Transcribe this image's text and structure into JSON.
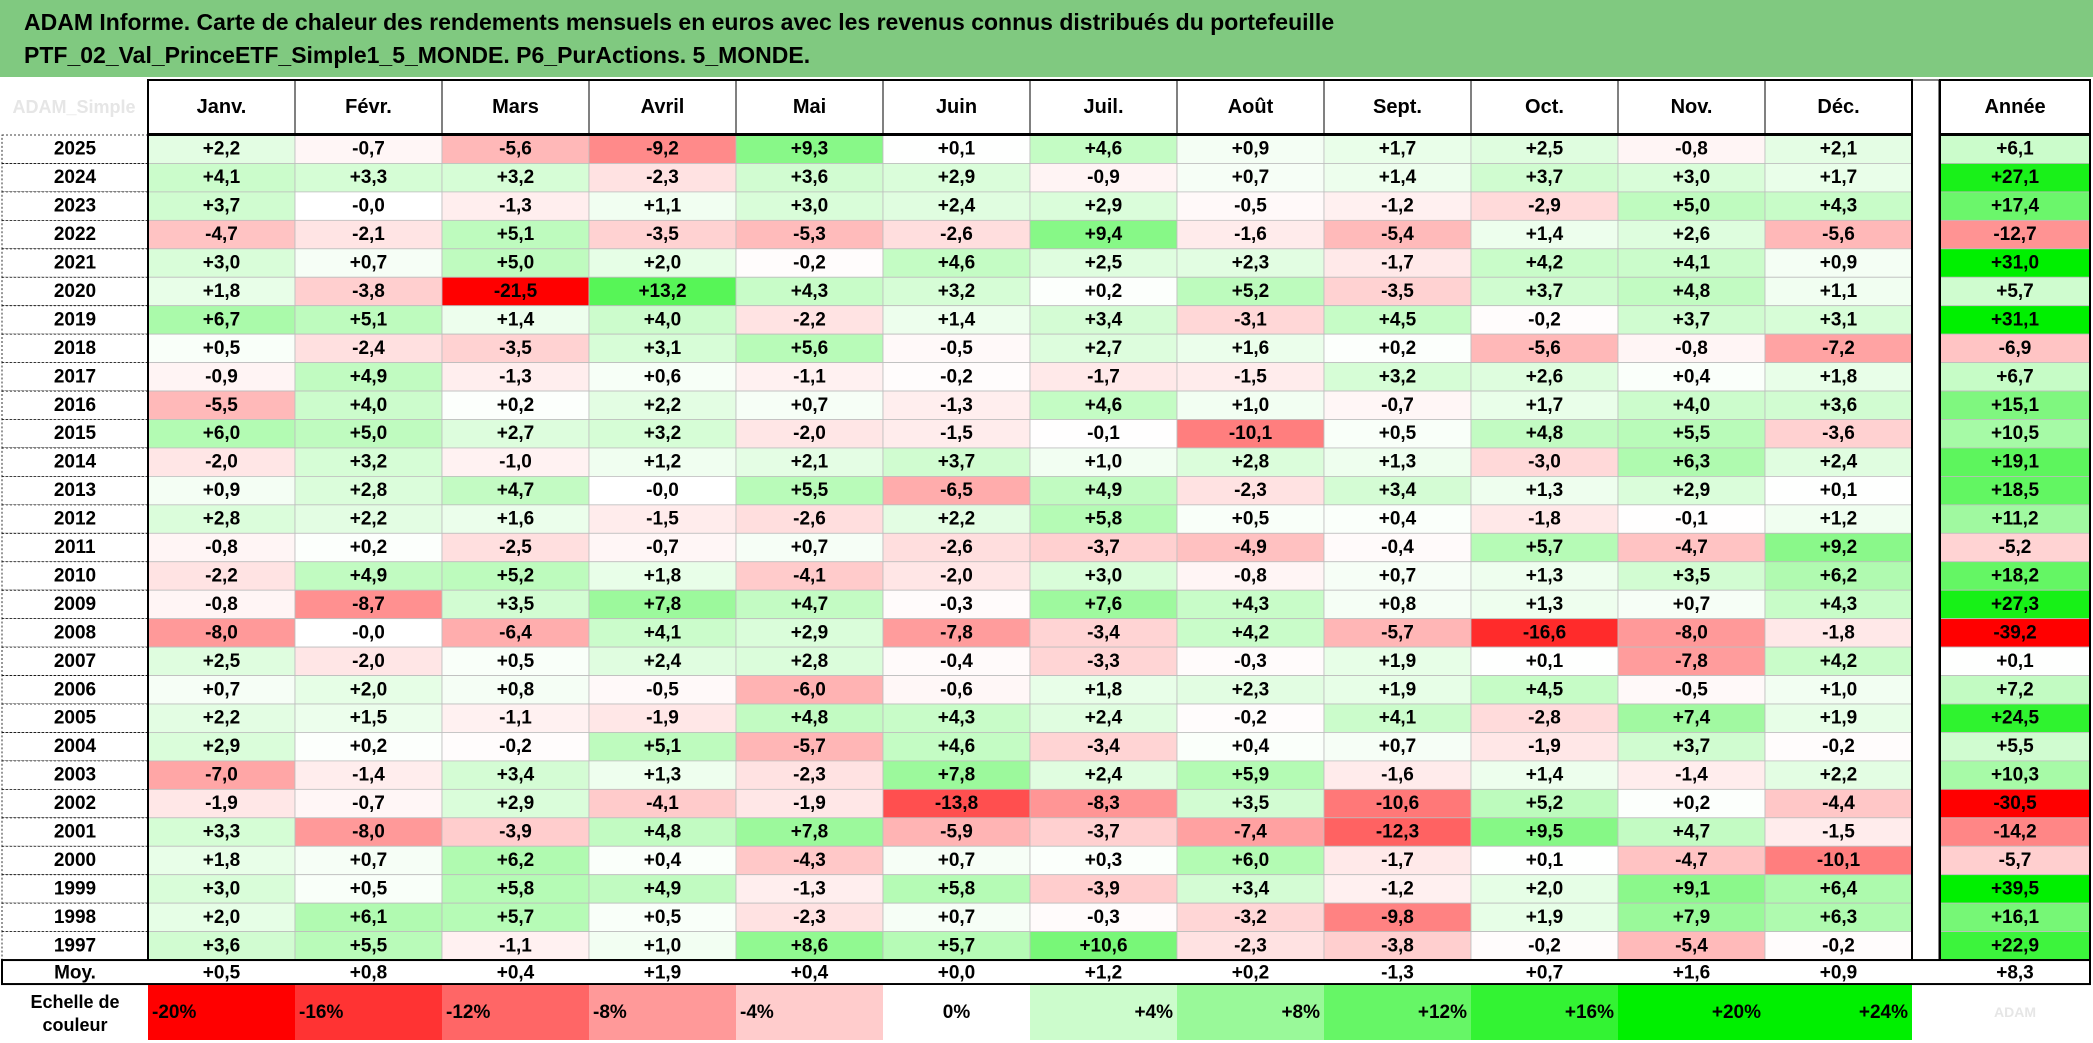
{
  "header": {
    "title_line1": "ADAM Informe. Carte de chaleur des rendements mensuels en euros avec les revenus connus distribués du portefeuille",
    "title_line2": "PTF_02_Val_PrinceETF_Simple1_5_MONDE. P6_PurActions. 5_MONDE."
  },
  "corner_label": "ADAM_Simple",
  "colors": {
    "header_bg": "#80c980",
    "neg_max": "#ff0000",
    "pos_max": "#00e000",
    "neutral": "#ffffff"
  },
  "chart_data": {
    "type": "heatmap",
    "months": [
      "Janv.",
      "Févr.",
      "Mars",
      "Avril",
      "Mai",
      "Juin",
      "Juil.",
      "Août",
      "Sept.",
      "Oct.",
      "Nov.",
      "Déc."
    ],
    "annual_label": "Année",
    "rows": [
      {
        "year": "2025",
        "values": [
          "+2,2",
          "-0,7",
          "-5,6",
          "-9,2",
          "+9,3",
          "+0,1",
          "+4,6",
          "+0,9",
          "+1,7",
          "+2,5",
          "-0,8",
          "+2,1"
        ],
        "annual": "+6,1"
      },
      {
        "year": "2024",
        "values": [
          "+4,1",
          "+3,3",
          "+3,2",
          "-2,3",
          "+3,6",
          "+2,9",
          "-0,9",
          "+0,7",
          "+1,4",
          "+3,7",
          "+3,0",
          "+1,7"
        ],
        "annual": "+27,1"
      },
      {
        "year": "2023",
        "values": [
          "+3,7",
          "-0,0",
          "-1,3",
          "+1,1",
          "+3,0",
          "+2,4",
          "+2,9",
          "-0,5",
          "-1,2",
          "-2,9",
          "+5,0",
          "+4,3"
        ],
        "annual": "+17,4"
      },
      {
        "year": "2022",
        "values": [
          "-4,7",
          "-2,1",
          "+5,1",
          "-3,5",
          "-5,3",
          "-2,6",
          "+9,4",
          "-1,6",
          "-5,4",
          "+1,4",
          "+2,6",
          "-5,6"
        ],
        "annual": "-12,7"
      },
      {
        "year": "2021",
        "values": [
          "+3,0",
          "+0,7",
          "+5,0",
          "+2,0",
          "-0,2",
          "+4,6",
          "+2,5",
          "+2,3",
          "-1,7",
          "+4,2",
          "+4,1",
          "+0,9"
        ],
        "annual": "+31,0"
      },
      {
        "year": "2020",
        "values": [
          "+1,8",
          "-3,8",
          "-21,5",
          "+13,2",
          "+4,3",
          "+3,2",
          "+0,2",
          "+5,2",
          "-3,5",
          "+3,7",
          "+4,8",
          "+1,1"
        ],
        "annual": "+5,7"
      },
      {
        "year": "2019",
        "values": [
          "+6,7",
          "+5,1",
          "+1,4",
          "+4,0",
          "-2,2",
          "+1,4",
          "+3,4",
          "-3,1",
          "+4,5",
          "-0,2",
          "+3,7",
          "+3,1"
        ],
        "annual": "+31,1"
      },
      {
        "year": "2018",
        "values": [
          "+0,5",
          "-2,4",
          "-3,5",
          "+3,1",
          "+5,6",
          "-0,5",
          "+2,7",
          "+1,6",
          "+0,2",
          "-5,6",
          "-0,8",
          "-7,2"
        ],
        "annual": "-6,9"
      },
      {
        "year": "2017",
        "values": [
          "-0,9",
          "+4,9",
          "-1,3",
          "+0,6",
          "-1,1",
          "-0,2",
          "-1,7",
          "-1,5",
          "+3,2",
          "+2,6",
          "+0,4",
          "+1,8"
        ],
        "annual": "+6,7"
      },
      {
        "year": "2016",
        "values": [
          "-5,5",
          "+4,0",
          "+0,2",
          "+2,2",
          "+0,7",
          "-1,3",
          "+4,6",
          "+1,0",
          "-0,7",
          "+1,7",
          "+4,0",
          "+3,6"
        ],
        "annual": "+15,1"
      },
      {
        "year": "2015",
        "values": [
          "+6,0",
          "+5,0",
          "+2,7",
          "+3,2",
          "-2,0",
          "-1,5",
          "-0,1",
          "-10,1",
          "+0,5",
          "+4,8",
          "+5,5",
          "-3,6"
        ],
        "annual": "+10,5"
      },
      {
        "year": "2014",
        "values": [
          "-2,0",
          "+3,2",
          "-1,0",
          "+1,2",
          "+2,1",
          "+3,7",
          "+1,0",
          "+2,8",
          "+1,3",
          "-3,0",
          "+6,3",
          "+2,4"
        ],
        "annual": "+19,1"
      },
      {
        "year": "2013",
        "values": [
          "+0,9",
          "+2,8",
          "+4,7",
          "-0,0",
          "+5,5",
          "-6,5",
          "+4,9",
          "-2,3",
          "+3,4",
          "+1,3",
          "+2,9",
          "+0,1"
        ],
        "annual": "+18,5"
      },
      {
        "year": "2012",
        "values": [
          "+2,8",
          "+2,2",
          "+1,6",
          "-1,5",
          "-2,6",
          "+2,2",
          "+5,8",
          "+0,5",
          "+0,4",
          "-1,8",
          "-0,1",
          "+1,2"
        ],
        "annual": "+11,2"
      },
      {
        "year": "2011",
        "values": [
          "-0,8",
          "+0,2",
          "-2,5",
          "-0,7",
          "+0,7",
          "-2,6",
          "-3,7",
          "-4,9",
          "-0,4",
          "+5,7",
          "-4,7",
          "+9,2"
        ],
        "annual": "-5,2"
      },
      {
        "year": "2010",
        "values": [
          "-2,2",
          "+4,9",
          "+5,2",
          "+1,8",
          "-4,1",
          "-2,0",
          "+3,0",
          "-0,8",
          "+0,7",
          "+1,3",
          "+3,5",
          "+6,2"
        ],
        "annual": "+18,2"
      },
      {
        "year": "2009",
        "values": [
          "-0,8",
          "-8,7",
          "+3,5",
          "+7,8",
          "+4,7",
          "-0,3",
          "+7,6",
          "+4,3",
          "+0,8",
          "+1,3",
          "+0,7",
          "+4,3"
        ],
        "annual": "+27,3"
      },
      {
        "year": "2008",
        "values": [
          "-8,0",
          "-0,0",
          "-6,4",
          "+4,1",
          "+2,9",
          "-7,8",
          "-3,4",
          "+4,2",
          "-5,7",
          "-16,6",
          "-8,0",
          "-1,8"
        ],
        "annual": "-39,2"
      },
      {
        "year": "2007",
        "values": [
          "+2,5",
          "-2,0",
          "+0,5",
          "+2,4",
          "+2,8",
          "-0,4",
          "-3,3",
          "-0,3",
          "+1,9",
          "+0,1",
          "-7,8",
          "+4,2"
        ],
        "annual": "+0,1"
      },
      {
        "year": "2006",
        "values": [
          "+0,7",
          "+2,0",
          "+0,8",
          "-0,5",
          "-6,0",
          "-0,6",
          "+1,8",
          "+2,3",
          "+1,9",
          "+4,5",
          "-0,5",
          "+1,0"
        ],
        "annual": "+7,2"
      },
      {
        "year": "2005",
        "values": [
          "+2,2",
          "+1,5",
          "-1,1",
          "-1,9",
          "+4,8",
          "+4,3",
          "+2,4",
          "-0,2",
          "+4,1",
          "-2,8",
          "+7,4",
          "+1,9"
        ],
        "annual": "+24,5"
      },
      {
        "year": "2004",
        "values": [
          "+2,9",
          "+0,2",
          "-0,2",
          "+5,1",
          "-5,7",
          "+4,6",
          "-3,4",
          "+0,4",
          "+0,7",
          "-1,9",
          "+3,7",
          "-0,2"
        ],
        "annual": "+5,5"
      },
      {
        "year": "2003",
        "values": [
          "-7,0",
          "-1,4",
          "+3,4",
          "+1,3",
          "-2,3",
          "+7,8",
          "+2,4",
          "+5,9",
          "-1,6",
          "+1,4",
          "-1,4",
          "+2,2"
        ],
        "annual": "+10,3"
      },
      {
        "year": "2002",
        "values": [
          "-1,9",
          "-0,7",
          "+2,9",
          "-4,1",
          "-1,9",
          "-13,8",
          "-8,3",
          "+3,5",
          "-10,6",
          "+5,2",
          "+0,2",
          "-4,4"
        ],
        "annual": "-30,5"
      },
      {
        "year": "2001",
        "values": [
          "+3,3",
          "-8,0",
          "-3,9",
          "+4,8",
          "+7,8",
          "-5,9",
          "-3,7",
          "-7,4",
          "-12,3",
          "+9,5",
          "+4,7",
          "-1,5"
        ],
        "annual": "-14,2"
      },
      {
        "year": "2000",
        "values": [
          "+1,8",
          "+0,7",
          "+6,2",
          "+0,4",
          "-4,3",
          "+0,7",
          "+0,3",
          "+6,0",
          "-1,7",
          "+0,1",
          "-4,7",
          "-10,1"
        ],
        "annual": "-5,7"
      },
      {
        "year": "1999",
        "values": [
          "+3,0",
          "+0,5",
          "+5,8",
          "+4,9",
          "-1,3",
          "+5,8",
          "-3,9",
          "+3,4",
          "-1,2",
          "+2,0",
          "+9,1",
          "+6,4"
        ],
        "annual": "+39,5"
      },
      {
        "year": "1998",
        "values": [
          "+2,0",
          "+6,1",
          "+5,7",
          "+0,5",
          "-2,3",
          "+0,7",
          "-0,3",
          "-3,2",
          "-9,8",
          "+1,9",
          "+7,9",
          "+6,3"
        ],
        "annual": "+16,1"
      },
      {
        "year": "1997",
        "values": [
          "+3,6",
          "+5,5",
          "-1,1",
          "+1,0",
          "+8,6",
          "+5,7",
          "+10,6",
          "-2,3",
          "-3,8",
          "-0,2",
          "-5,4",
          "-0,2"
        ],
        "annual": "+22,9"
      }
    ],
    "average": {
      "label": "Moy.",
      "values": [
        "+0,5",
        "+0,8",
        "+0,4",
        "+1,9",
        "+0,4",
        "+0,0",
        "+1,2",
        "+0,2",
        "-1,3",
        "+0,7",
        "+1,6",
        "+0,9"
      ],
      "annual": "+8,3"
    },
    "scale": {
      "label_line1": "Echelle de",
      "label_line2": "couleur",
      "steps": [
        "-20%",
        "-16%",
        "-12%",
        "-8%",
        "-4%",
        "0%",
        "+4%",
        "+8%",
        "+12%",
        "+16%",
        "+20%",
        "+24%"
      ]
    },
    "footer_note": "ADAM"
  }
}
